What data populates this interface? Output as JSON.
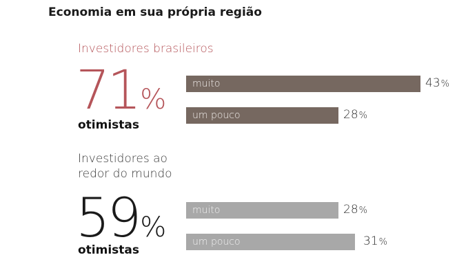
{
  "title": "Economia em sua própria região",
  "colors": {
    "brazil_accent": "#b5555a",
    "brazil_bar": "#766860",
    "world_bar": "#a8a8a8"
  },
  "chart_data": {
    "type": "bar",
    "orientation": "horizontal",
    "title": "Economia em sua própria região",
    "xlim": [
      0,
      50
    ],
    "groups": [
      {
        "id": "br",
        "name": "Investidores brasileiros",
        "total_value": "71",
        "total_unit": "%",
        "total_label": "otimistas",
        "bar_style": "dark",
        "categories": [
          "muito",
          "um pouco"
        ],
        "values": [
          43,
          28
        ],
        "value_labels": [
          "43",
          "28"
        ],
        "unit": "%"
      },
      {
        "id": "world",
        "name": "Investidores ao redor do mundo",
        "name_lines": [
          "Investidores ao",
          "redor do mundo"
        ],
        "total_value": "59",
        "total_unit": "%",
        "total_label": "otimistas",
        "bar_style": "light",
        "categories": [
          "muito",
          "um pouco"
        ],
        "values": [
          28,
          31
        ],
        "value_labels": [
          "28",
          "31"
        ],
        "unit": "%"
      }
    ]
  }
}
